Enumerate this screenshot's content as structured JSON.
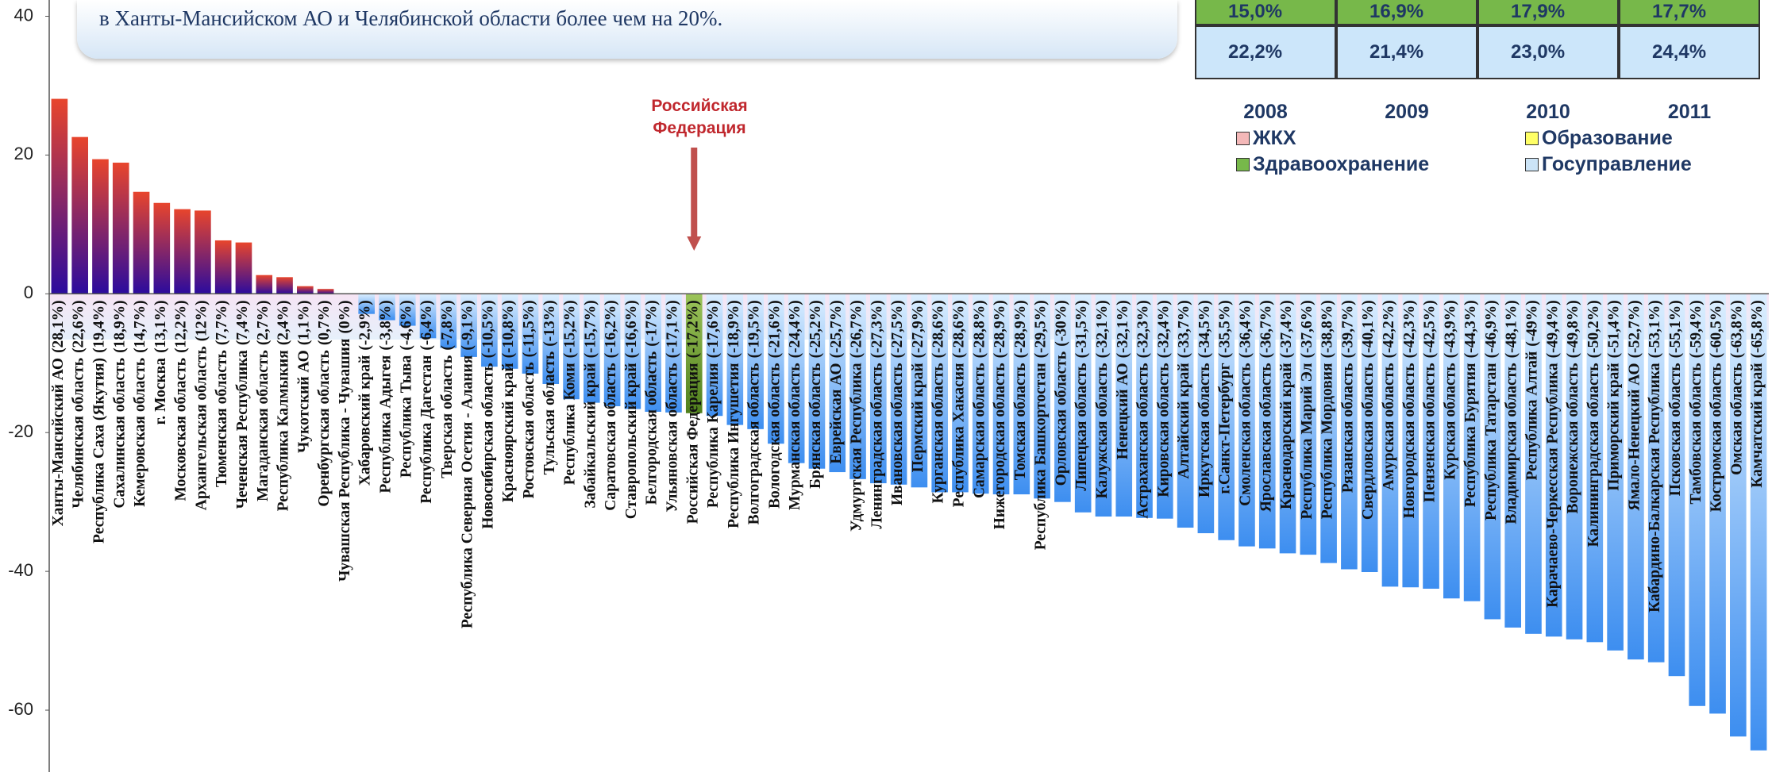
{
  "chart_data": {
    "type": "bar",
    "categories": [
      "Ханты-Мансийский АО",
      "Челябинская область",
      "Республика Саха (Якутия)",
      "Сахалинская область",
      "Кемеровская область",
      "г. Москва",
      "Московская область",
      "Архангельская область",
      "Тюменская область",
      "Чеченская Республика",
      "Магаданская область",
      "Республика Калмыкия",
      "Чукотский АО",
      "Оренбургская область",
      "Чувашская Республика - Чувашия",
      "Хабаровский край",
      "Республика Адыгея",
      "Республика Тыва",
      "Республика Дагестан",
      "Тверская область",
      "Республика Северная Осетия - Алания",
      "Новосибирская область",
      "Красноярский край",
      "Ростовская область",
      "Тульская область",
      "Республика Коми",
      "Забайкальский край",
      "Саратовская область",
      "Ставропольский край",
      "Белгородская область",
      "Ульяновская область",
      "Российская Федерация",
      "Республика Карелия",
      "Республика Ингушетия",
      "Волгоградская область",
      "Вологодская область",
      "Мурманская область",
      "Брянская область",
      "Еврейская АО",
      "Удмуртская Республика",
      "Ленинградская область",
      "Ивановская область",
      "Пермский край",
      "Курганская область",
      "Республика Хакасия",
      "Самарская область",
      "Нижегородская область",
      "Томская область",
      "Республика Башкортостан",
      "Орловская область",
      "Липецкая область",
      "Калужская область",
      "Ненецкий АО",
      "Астраханская область",
      "Кировская область",
      "Алтайский край",
      "Иркутская область",
      "г.Санкт-Петербург",
      "Смоленская область",
      "Ярославская область",
      "Краснодарский край",
      "Республика Марий Эл",
      "Республика Мордовия",
      "Рязанская область",
      "Свердловская область",
      "Амурская область",
      "Новгородская область",
      "Пензенская область",
      "Курская область",
      "Республика Бурятия",
      "Республика Татарстан",
      "Владимирская область",
      "Республика Алтай",
      "Карачаево-Черкесская Республика",
      "Воронежская область",
      "Калининградская область",
      "Приморский край",
      "Ямало-Ненецкий АО",
      "Кабардино-Балкарская Республика",
      "Псковская область",
      "Тамбовская область",
      "Костромская область",
      "Омская область",
      "Камчатский край"
    ],
    "values": [
      28.1,
      22.6,
      19.4,
      18.9,
      14.7,
      13.1,
      12.2,
      12,
      7.7,
      7.4,
      2.7,
      2.4,
      1.1,
      0.7,
      0,
      -2.9,
      -3.8,
      -4.6,
      -6.4,
      -7.8,
      -9.1,
      -10.5,
      -10.8,
      -11.5,
      -13,
      -15.2,
      -15.7,
      -16.2,
      -16.6,
      -17,
      -17.1,
      -17.2,
      -17.6,
      -18.9,
      -19.5,
      -21.6,
      -24.4,
      -25.2,
      -25.7,
      -26.7,
      -27.3,
      -27.5,
      -27.9,
      -28.6,
      -28.6,
      -28.8,
      -28.9,
      -28.9,
      -29.5,
      -30,
      -31.5,
      -32.1,
      -32.1,
      -32.3,
      -32.4,
      -33.7,
      -34.5,
      -35.5,
      -36.4,
      -36.7,
      -37.4,
      -37.6,
      -38.8,
      -39.7,
      -40.1,
      -42.2,
      -42.3,
      -42.5,
      -43.9,
      -44.3,
      -46.9,
      -48.1,
      -49,
      -49.4,
      -49.8,
      -50.2,
      -51.4,
      -52.7,
      -53.1,
      -55.1,
      -59.4,
      -60.5,
      -63.8,
      -65.8
    ],
    "value_labels": [
      "(28,1%)",
      "(22,6%)",
      "(19,4%)",
      "(18,9%)",
      "(14,7%)",
      "(13,1%)",
      "(12,2%)",
      "(12%)",
      "(7,7%)",
      "(7,4%)",
      "(2,7%)",
      "(2,4%)",
      "(1,1%)",
      "(0,7%)",
      "(0%)",
      "(-2,9%)",
      "(-3,8%)",
      "(-4,6%)",
      "(-6,4%)",
      "(-7,8%)",
      "(-9,1%)",
      "(-10,5%)",
      "(-10,8%)",
      "(-11,5%)",
      "(-13%)",
      "(-15,2%)",
      "(-15,7%)",
      "(-16,2%)",
      "(-16,6%)",
      "(-17%)",
      "(-17,1%)",
      "(-17,2%)",
      "(-17,6%)",
      "(-18,9%)",
      "(-19,5%)",
      "(-21,6%)",
      "(-24,4%)",
      "(-25,2%)",
      "(-25,7%)",
      "(-26,7%)",
      "(-27,3%)",
      "(-27,5%)",
      "(-27,9%)",
      "(-28,6%)",
      "(-28,6%)",
      "(-28,8%)",
      "(-28,9%)",
      "(-28,9%)",
      "(-29,5%)",
      "(-30%)",
      "(-31,5%)",
      "(-32,1%)",
      "(-32,1%)",
      "(-32,3%)",
      "(-32,4%)",
      "(-33,7%)",
      "(-34,5%)",
      "(-35,5%)",
      "(-36,4%)",
      "(-36,7%)",
      "(-37,4%)",
      "(-37,6%)",
      "(-38,8%)",
      "(-39,7%)",
      "(-40,1%)",
      "(-42,2%)",
      "(-42,3%)",
      "(-42,5%)",
      "(-43,9%)",
      "(-44,3%)",
      "(-46,9%)",
      "(-48,1%)",
      "(-49%)",
      "(-49,4%)",
      "(-49,8%)",
      "(-50,2%)",
      "(-51,4%)",
      "(-52,7%)",
      "(-53,1%)",
      "(-55,1%)",
      "(-59,4%)",
      "(-60,5%)",
      "(-63,8%)",
      "(-65,8%)"
    ],
    "colors": {
      "positive": [
        "#e8452c",
        "#2b0b9e"
      ],
      "negative": [
        "#dcefff",
        "#3d8ef0"
      ],
      "highlight": [
        "#9cc45a",
        "#4f7f1c"
      ]
    },
    "highlight": "Российская Федерация",
    "annotation": "Российская Федерация",
    "ylim": [
      -68,
      42
    ],
    "yticks": [
      -60,
      -40,
      -20,
      0,
      20,
      40
    ],
    "grid": false
  },
  "note": "в Ханты-Мансийском АО и Челябинской области более чем на 20%.",
  "inset": {
    "years": [
      "2008",
      "2009",
      "2010",
      "2011"
    ],
    "rows": [
      {
        "color": "#77b84a",
        "cells": [
          "15,0%",
          "16,9%",
          "17,9%",
          "17,7%"
        ]
      },
      {
        "color": "#cce6fa",
        "cells": [
          "22,2%",
          "21,4%",
          "23,0%",
          "24,4%"
        ]
      }
    ],
    "legend": [
      {
        "name": "ЖКХ",
        "color": "#f4b8b8"
      },
      {
        "name": "Образование",
        "color": "#ffff66"
      },
      {
        "name": "Здравоохранение",
        "color": "#77b84a"
      },
      {
        "name": "Госуправление",
        "color": "#cce4f7"
      }
    ]
  }
}
